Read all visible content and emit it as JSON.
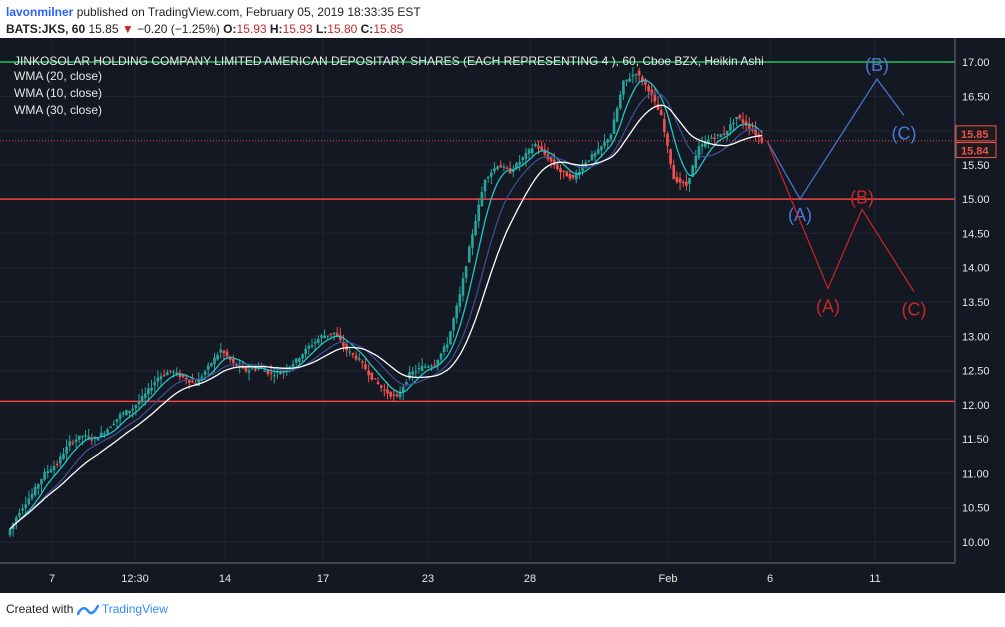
{
  "header": {
    "user": "lavonmilner",
    "published": "published on TradingView.com, February 05, 2019 18:33:35 EST",
    "symbol": "BATS:JKS, 60",
    "last": "15.85",
    "change_arrow": "▼",
    "change": "−0.20 (−1.25%)",
    "o_label": "O:",
    "o": "15.93",
    "h_label": "H:",
    "h": "15.93",
    "l_label": "L:",
    "l": "15.80",
    "c_label": "C:",
    "c": "15.85"
  },
  "footer": {
    "created_with": "Created with",
    "brand": "TradingView"
  },
  "colors": {
    "up": "#26a69a",
    "down": "#ef5350",
    "wma10": "#20c6c6",
    "wma20": "#3b4d8f",
    "wma30": "#ffffff",
    "bg": "#141823",
    "blue_path": "#4a78d8",
    "red_path": "#c62828"
  },
  "chart_data": {
    "type": "candlestick",
    "title": "JINKOSOLAR HOLDING COMPANY LIMITED AMERICAN DEPOSITARY SHARES (EACH REPRESENTING 4 ), 60, Cboe BZX, Heikin Ashi",
    "legend": [
      "WMA (20, close)",
      "WMA (10, close)",
      "WMA (30, close)"
    ],
    "ylim": [
      9.7,
      17.2
    ],
    "y_ticks": [
      "17.00",
      "16.50",
      "16.00",
      "15.50",
      "15.00",
      "14.50",
      "14.00",
      "13.50",
      "13.00",
      "12.50",
      "12.00",
      "11.50",
      "11.00",
      "10.50",
      "10.00"
    ],
    "x_ticks": [
      "7",
      "12:30",
      "14",
      "17",
      "23",
      "28",
      "Feb",
      "6",
      "11"
    ],
    "price_labels": [
      {
        "text": "15.85",
        "value": 15.85,
        "color": "#ef5350"
      },
      {
        "text": "15.84",
        "value": 15.84,
        "color": "#ef5350"
      }
    ],
    "horizontal_lines": [
      {
        "value": 17.0,
        "color": "#22c55e"
      },
      {
        "value": 15.0,
        "color": "#ef4444"
      },
      {
        "value": 12.05,
        "color": "#ef4444"
      },
      {
        "value": 15.85,
        "color": "#ef5350",
        "dotted": true
      }
    ],
    "close_series": [
      10.1,
      10.45,
      10.7,
      11.0,
      11.15,
      11.45,
      11.55,
      11.5,
      11.65,
      11.85,
      11.95,
      12.15,
      12.4,
      12.5,
      12.4,
      12.3,
      12.55,
      12.8,
      12.6,
      12.5,
      12.55,
      12.45,
      12.5,
      12.65,
      12.85,
      13.0,
      13.05,
      12.8,
      12.65,
      12.4,
      12.2,
      12.1,
      12.45,
      12.55,
      12.6,
      12.9,
      13.6,
      14.5,
      15.3,
      15.5,
      15.4,
      15.6,
      15.8,
      15.6,
      15.4,
      15.3,
      15.55,
      15.7,
      15.95,
      16.7,
      16.85,
      16.6,
      16.2,
      15.3,
      15.2,
      15.75,
      15.9,
      15.95,
      16.2,
      16.05,
      15.85
    ],
    "wave_blue": {
      "points": [
        {
          "label": "(A)",
          "value": 15.0
        },
        {
          "label": "(B)",
          "value": 16.75
        },
        {
          "label": "(C)",
          "value": 16.22
        }
      ],
      "start_value": 15.85
    },
    "wave_red": {
      "points": [
        {
          "label": "(A)",
          "value": 13.7
        },
        {
          "label": "(B)",
          "value": 14.85
        },
        {
          "label": "(C)",
          "value": 13.65
        }
      ],
      "start_value": 15.85
    }
  }
}
